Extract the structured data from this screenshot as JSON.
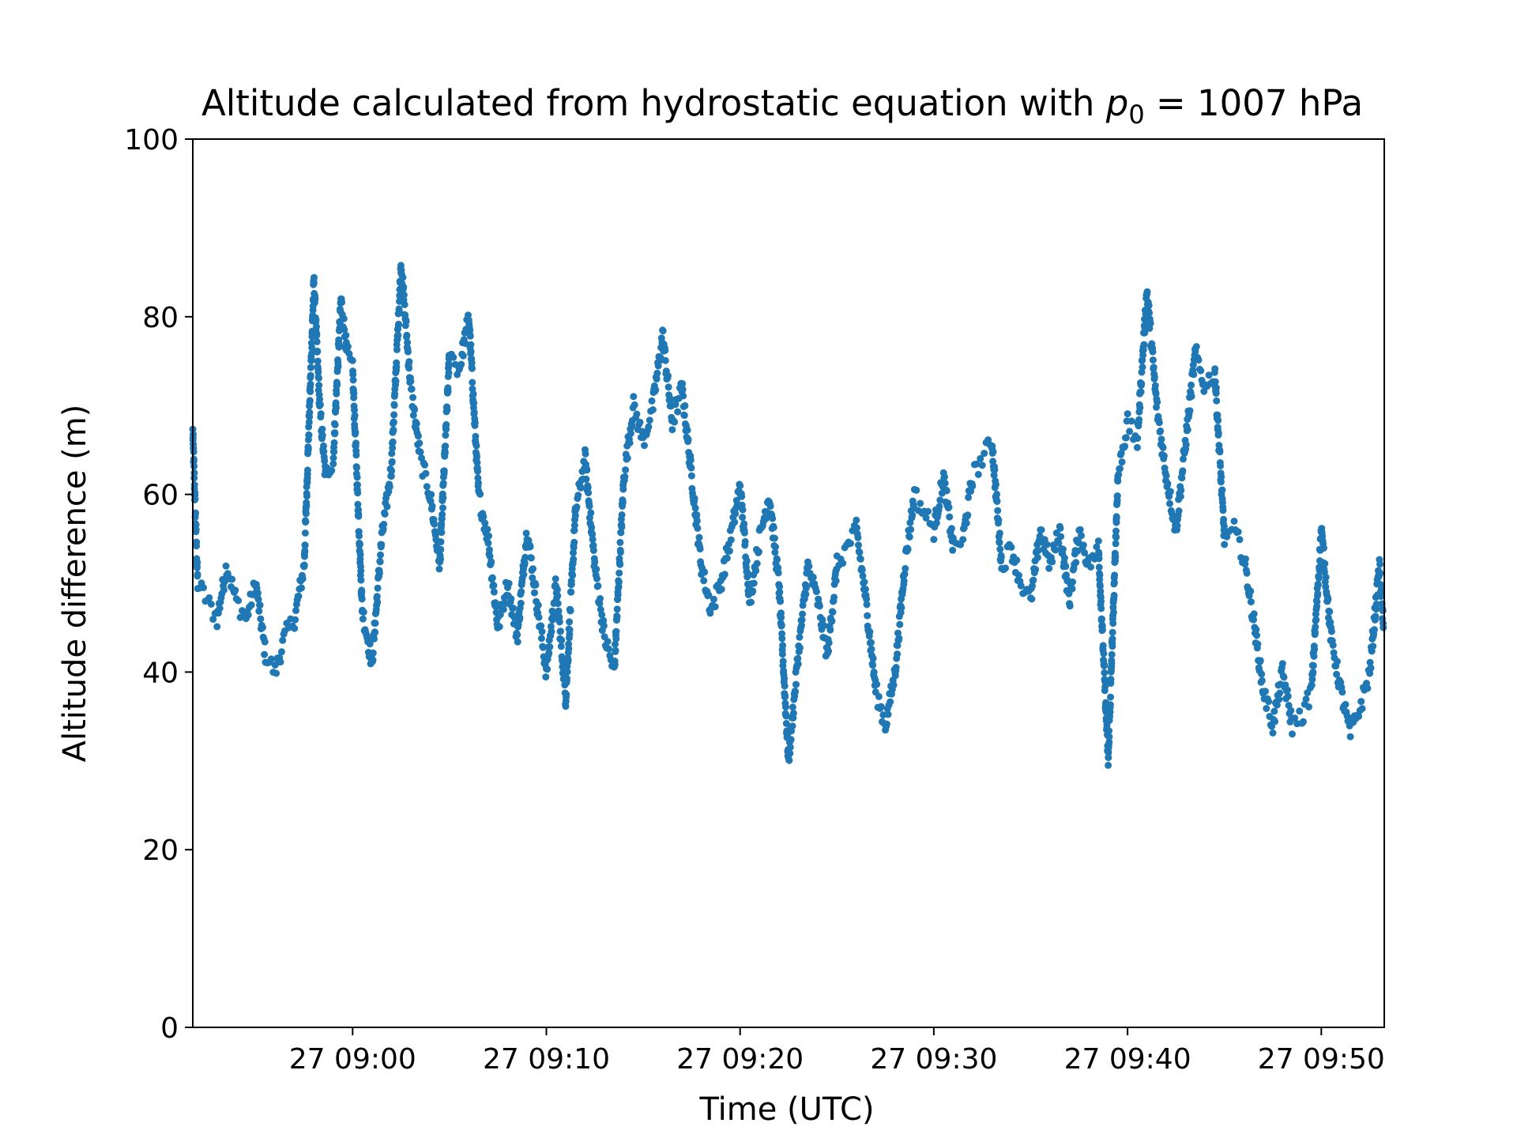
{
  "chart_data": {
    "type": "scatter",
    "title": "Altitude calculated from hydrostatic equation with",
    "title_math_symbol": "p",
    "title_math_subscript": "0",
    "title_suffix": " = 1007 hPa",
    "xlabel": "Time (UTC)",
    "ylabel": "Altitude difference (m)",
    "xlim": [
      "27 08:51:45",
      "27 09:53:15"
    ],
    "ylim": [
      0,
      100
    ],
    "x_ticks": [
      "27 09:00",
      "27 09:10",
      "27 09:20",
      "27 09:30",
      "27 09:40",
      "27 09:50"
    ],
    "x_tick_minutes": [
      0,
      10,
      20,
      30,
      40,
      50
    ],
    "y_ticks": [
      "0",
      "20",
      "40",
      "60",
      "80",
      "100"
    ],
    "y_tick_values": [
      0,
      20,
      40,
      60,
      80,
      100
    ],
    "grid": false,
    "marker_color": "#1f77b4",
    "series": [
      {
        "x_minutes": [
          -8.25,
          -8.0,
          -7.5,
          -7.0,
          -6.5,
          -6.0,
          -5.5,
          -5.0,
          -4.5,
          -4.0,
          -3.5,
          -3.0,
          -2.5,
          -2.0,
          -1.7,
          -1.4,
          -1.0,
          -0.6,
          -0.3,
          0.0,
          0.5,
          1.0,
          1.5,
          2.0,
          2.5,
          3.0,
          3.5,
          4.0,
          4.5,
          5.0,
          5.5,
          6.0,
          6.5,
          7.0,
          7.5,
          8.0,
          8.5,
          9.0,
          9.5,
          10.0,
          10.5,
          11.0,
          11.5,
          12.0,
          12.5,
          13.0,
          13.5,
          14.0,
          14.5,
          15.0,
          15.5,
          16.0,
          16.5,
          17.0,
          17.5,
          18.0,
          18.5,
          19.0,
          19.5,
          20.0,
          20.5,
          21.0,
          21.5,
          22.0,
          22.5,
          23.0,
          23.5,
          24.0,
          24.5,
          25.0,
          25.5,
          26.0,
          26.5,
          27.0,
          27.5,
          28.0,
          28.5,
          29.0,
          29.5,
          30.0,
          30.5,
          31.0,
          31.5,
          32.0,
          32.5,
          33.0,
          33.5,
          34.0,
          34.5,
          35.0,
          35.5,
          36.0,
          36.5,
          37.0,
          37.5,
          38.0,
          38.5,
          39.0,
          39.5,
          40.0,
          40.5,
          41.0,
          41.5,
          42.0,
          42.5,
          43.0,
          43.5,
          44.0,
          44.5,
          45.0,
          45.5,
          46.0,
          46.5,
          47.0,
          47.5,
          48.0,
          48.5,
          49.0,
          49.5,
          50.0,
          50.5,
          51.0,
          51.5,
          52.0,
          52.5,
          53.0,
          53.2
        ],
        "values": [
          67,
          50,
          48,
          46,
          52,
          48,
          46,
          50,
          42,
          40,
          44,
          46,
          52,
          84,
          70,
          62,
          64,
          82,
          76,
          74,
          47,
          41,
          55,
          63,
          86,
          72,
          64,
          60,
          52,
          76,
          74,
          80,
          60,
          55,
          45,
          50,
          44,
          56,
          48,
          40,
          50,
          37,
          58,
          64,
          52,
          44,
          40,
          62,
          70,
          66,
          70,
          78,
          68,
          72,
          62,
          52,
          47,
          50,
          55,
          61,
          48,
          55,
          60,
          50,
          30,
          42,
          52,
          48,
          42,
          52,
          54,
          56,
          48,
          38,
          34,
          40,
          52,
          60,
          58,
          56,
          62,
          54,
          55,
          62,
          64,
          66,
          52,
          54,
          50,
          48,
          56,
          52,
          56,
          48,
          56,
          52,
          54,
          30,
          62,
          68,
          66,
          83,
          70,
          62,
          56,
          66,
          76,
          72,
          74,
          55,
          56,
          53,
          46,
          38,
          34,
          40,
          34,
          35,
          38,
          56,
          44,
          38,
          33,
          36,
          40,
          52,
          45
        ]
      }
    ]
  }
}
